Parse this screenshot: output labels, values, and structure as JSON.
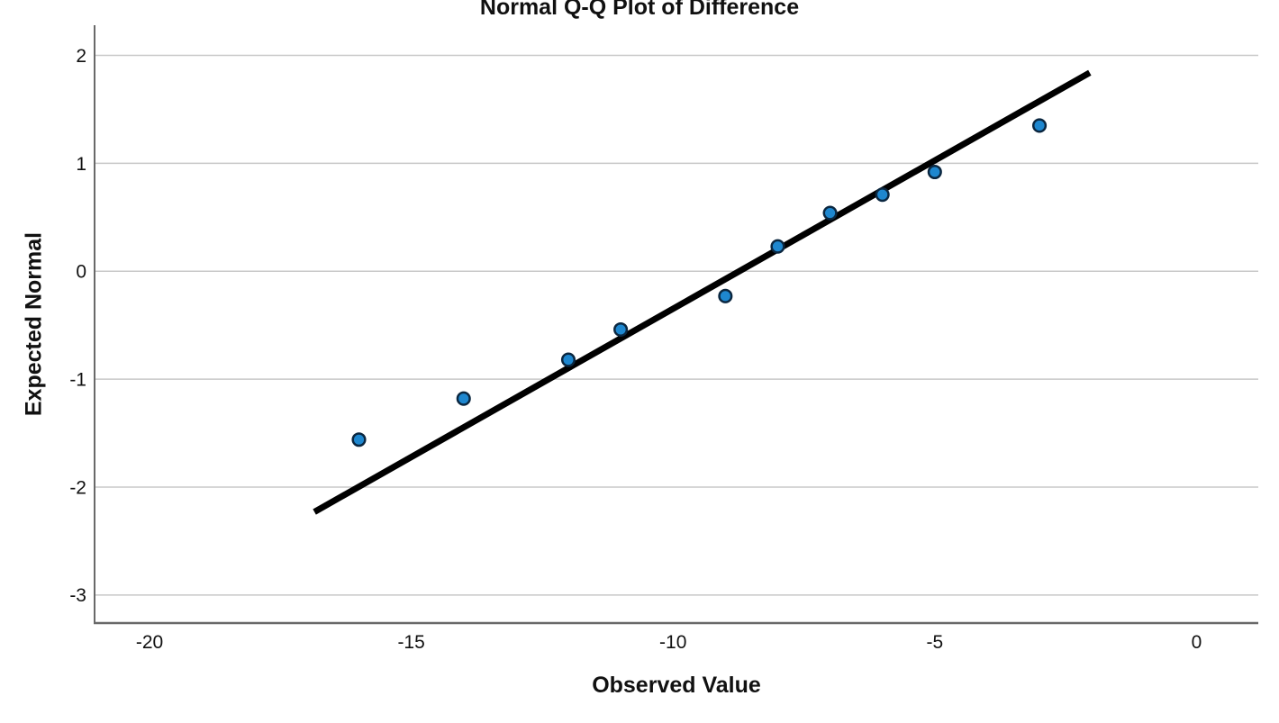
{
  "chart_data": {
    "type": "scatter",
    "subtype": "normal-qq-plot",
    "title": "Normal Q-Q Plot of Difference",
    "xlabel": "Observed Value",
    "ylabel": "Expected Normal",
    "x_ticks": [
      -20,
      -15,
      -10,
      -5,
      0
    ],
    "y_ticks": [
      2,
      1,
      0,
      -1,
      -2,
      -3
    ],
    "xlim": [
      -21.05,
      1.18
    ],
    "ylim": [
      -3.26,
      2.28
    ],
    "grid": "horizontal-only",
    "legend": "none",
    "points": {
      "observed": [
        -16,
        -14,
        -12,
        -11,
        -9,
        -8,
        -7,
        -6,
        -5,
        -3
      ],
      "expected": [
        -1.56,
        -1.18,
        -0.82,
        -0.54,
        -0.23,
        0.23,
        0.54,
        0.71,
        0.92,
        1.35
      ]
    },
    "fit_line": {
      "x1": -16.85,
      "y1": -2.23,
      "x2": -2.04,
      "y2": 1.84
    },
    "colors": {
      "point_fill": "#1e87cf",
      "point_stroke": "#0b2740",
      "fit_line": "#000000",
      "gridline": "#c8c8c8",
      "axis": "#696969",
      "text": "#111111"
    }
  }
}
